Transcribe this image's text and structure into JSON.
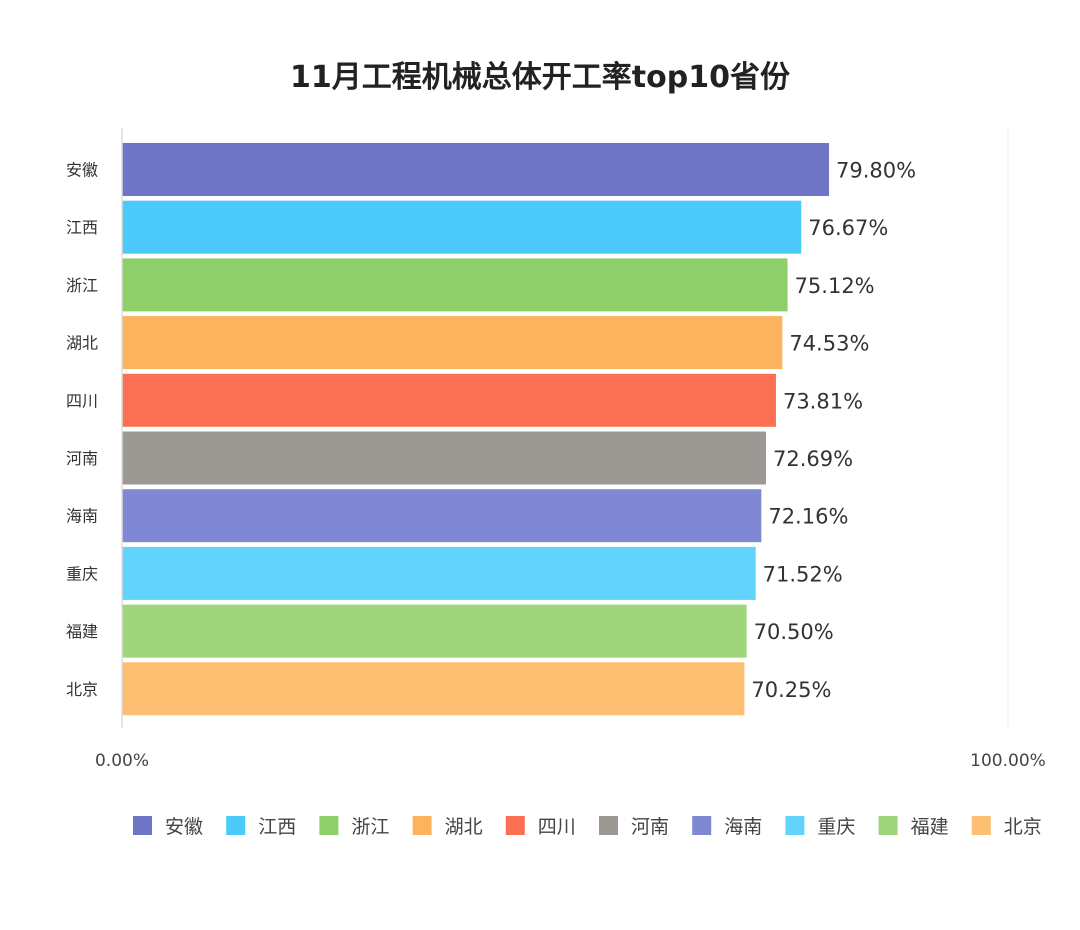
{
  "chart_data": {
    "type": "bar",
    "orientation": "horizontal",
    "title": "11月工程机械总体开工率top10省份",
    "categories": [
      "安徽",
      "江西",
      "浙江",
      "湖北",
      "四川",
      "河南",
      "海南",
      "重庆",
      "福建",
      "北京"
    ],
    "values": [
      79.8,
      76.67,
      75.12,
      74.53,
      73.81,
      72.69,
      72.16,
      71.52,
      70.5,
      70.25
    ],
    "value_labels": [
      "79.80%",
      "76.67%",
      "75.12%",
      "74.53%",
      "73.81%",
      "72.69%",
      "72.16%",
      "71.52%",
      "70.50%",
      "70.25%"
    ],
    "colors": [
      "#6f75c6",
      "#4ccbfb",
      "#8ecf6a",
      "#fdb25e",
      "#fb7052",
      "#9c9893",
      "#8088d3",
      "#62d4fc",
      "#9fd67c",
      "#fdc072"
    ],
    "xlim": [
      0,
      100
    ],
    "x_ticks": [
      "0.00%",
      "100.00%"
    ],
    "legend": {
      "placement": "bottom",
      "entries": [
        "安徽",
        "江西",
        "浙江",
        "湖北",
        "四川",
        "河南",
        "海南",
        "重庆",
        "福建",
        "北京"
      ]
    },
    "grid": false
  }
}
